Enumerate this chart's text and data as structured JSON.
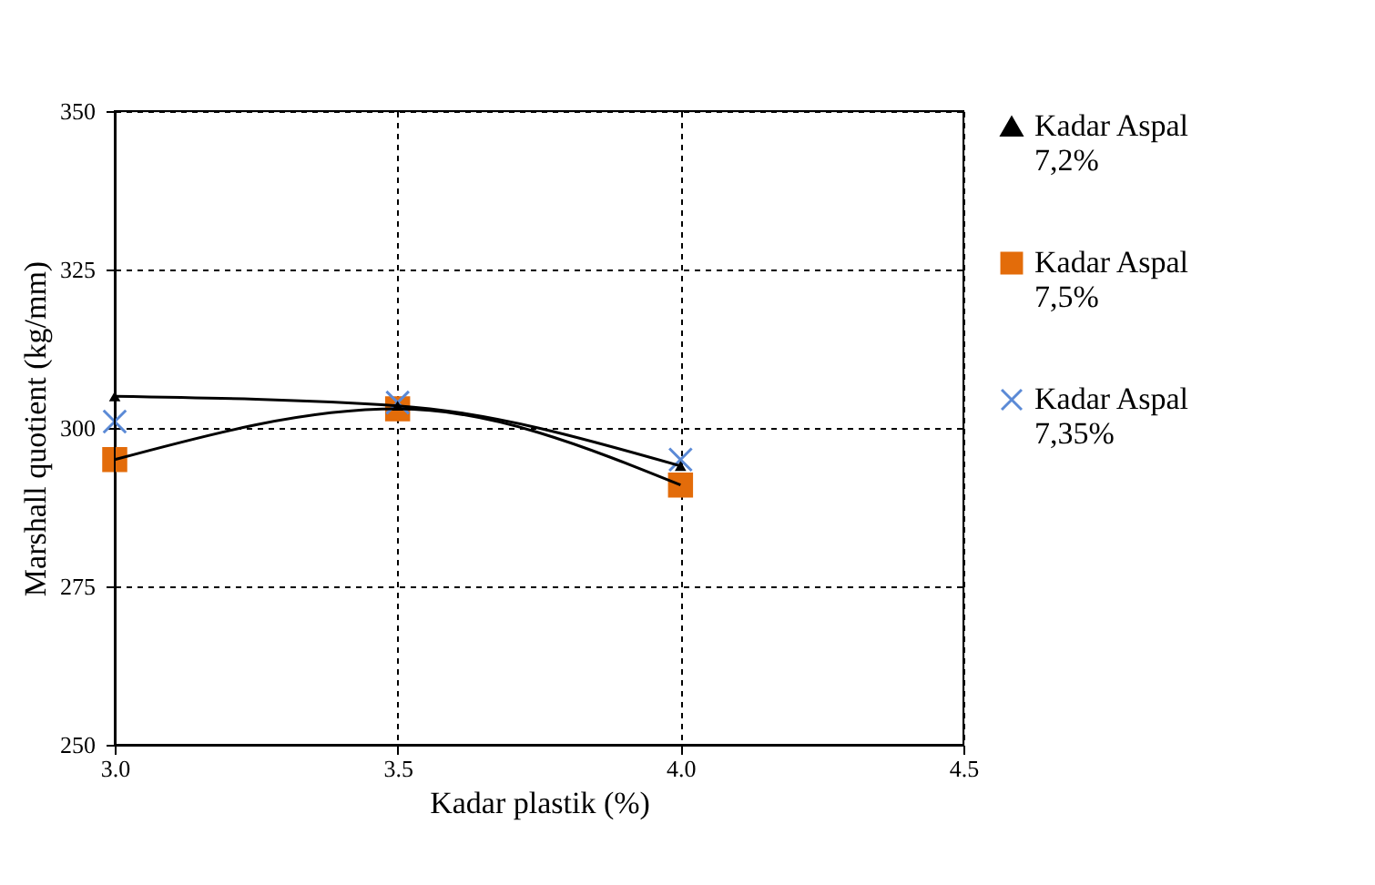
{
  "chart_data": {
    "type": "scatter",
    "xlabel": "Kadar plastik (%)",
    "ylabel": "Marshall quotient (kg/mm)",
    "x": [
      3.0,
      3.5,
      4.0
    ],
    "xlim": [
      3.0,
      4.5
    ],
    "xticks": [
      {
        "value": 3.0,
        "label": "3.0"
      },
      {
        "value": 3.5,
        "label": "3.5"
      },
      {
        "value": 4.0,
        "label": "4.0"
      },
      {
        "value": 4.5,
        "label": "4.5"
      }
    ],
    "ylim": [
      250,
      350
    ],
    "yticks": [
      250,
      275,
      300,
      325,
      350
    ],
    "grid": true,
    "legend": "right",
    "series": [
      {
        "name": "Kadar Aspal 7,2%",
        "type": "line",
        "color": "#000000",
        "marker": "triangle",
        "values": [
          305,
          303.5,
          294
        ]
      },
      {
        "name": "Kadar Aspal 7,5%",
        "color": "#e36c0a",
        "marker": "square",
        "values": [
          295,
          303,
          291
        ]
      },
      {
        "name": "Kadar Aspal 7,35%",
        "color": "#5b8ad6",
        "marker": "cross",
        "values": [
          301,
          304,
          295
        ]
      },
      {
        "type": "line",
        "color": "#000000",
        "marker": "none",
        "values": [
          295,
          303,
          291
        ]
      }
    ]
  }
}
